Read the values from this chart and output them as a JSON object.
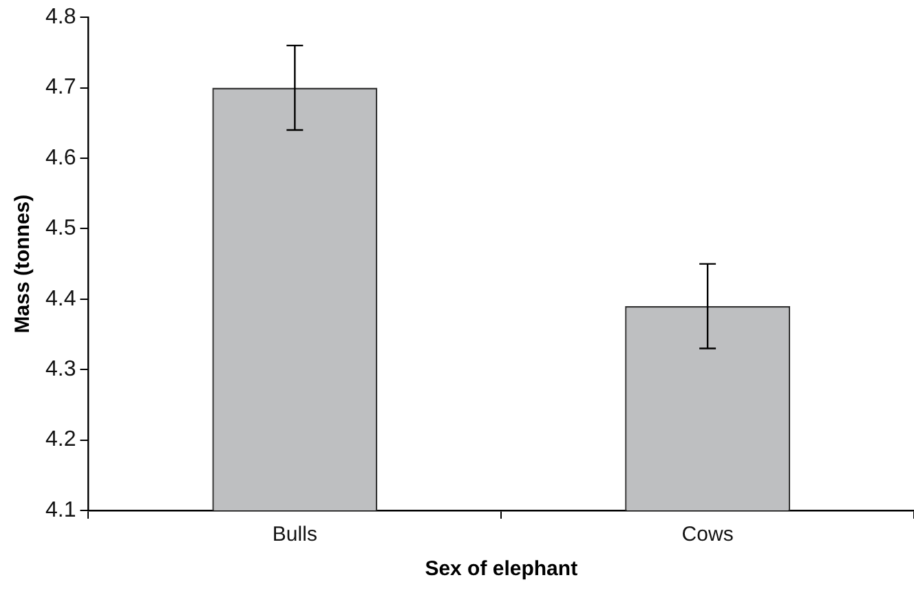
{
  "chart_data": {
    "type": "bar",
    "xlabel": "Sex of elephant",
    "ylabel": "Mass (tonnes)",
    "categories": [
      "Bulls",
      "Cows"
    ],
    "values": [
      4.7,
      4.39
    ],
    "errors": [
      0.06,
      0.06
    ],
    "color": "#bebfc1",
    "ylim": [
      4.1,
      4.8
    ],
    "yticks": [
      4.1,
      4.2,
      4.3,
      4.4,
      4.5,
      4.6,
      4.7,
      4.8
    ],
    "grid": false,
    "legend": false
  }
}
